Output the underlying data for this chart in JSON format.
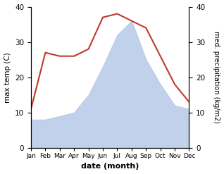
{
  "months": [
    "Jan",
    "Feb",
    "Mar",
    "Apr",
    "May",
    "Jun",
    "Jul",
    "Aug",
    "Sep",
    "Oct",
    "Nov",
    "Dec"
  ],
  "temperature": [
    11,
    27,
    26,
    26,
    28,
    37,
    38,
    36,
    34,
    26,
    18,
    13
  ],
  "precipitation": [
    8,
    8,
    9,
    10,
    15,
    23,
    32,
    36,
    25,
    18,
    12,
    11
  ],
  "temp_color": "#c0392b",
  "precip_color": "#b8c9e8",
  "ylim_left": [
    0,
    40
  ],
  "ylim_right": [
    0,
    40
  ],
  "yticks": [
    0,
    10,
    20,
    30,
    40
  ],
  "xlabel": "date (month)",
  "ylabel_left": "max temp (C)",
  "ylabel_right": "med. precipitation (kg/m2)",
  "bg_color": "#ffffff"
}
